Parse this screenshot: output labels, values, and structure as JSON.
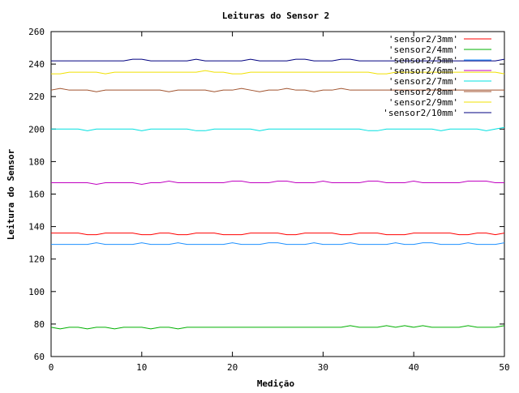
{
  "chart_data": {
    "type": "line",
    "title": "Leituras do Sensor 2",
    "xlabel": "Medição",
    "ylabel": "Leitura do Sensor",
    "xlim": [
      0,
      50
    ],
    "ylim": [
      60,
      260
    ],
    "xticks": [
      0,
      10,
      20,
      30,
      40,
      50
    ],
    "yticks": [
      60,
      80,
      100,
      120,
      140,
      160,
      180,
      200,
      220,
      240,
      260
    ],
    "grid": false,
    "legend_position": "top-right",
    "x": [
      0,
      1,
      2,
      3,
      4,
      5,
      6,
      7,
      8,
      9,
      10,
      11,
      12,
      13,
      14,
      15,
      16,
      17,
      18,
      19,
      20,
      21,
      22,
      23,
      24,
      25,
      26,
      27,
      28,
      29,
      30,
      31,
      32,
      33,
      34,
      35,
      36,
      37,
      38,
      39,
      40,
      41,
      42,
      43,
      44,
      45,
      46,
      47,
      48,
      49,
      50
    ],
    "series": [
      {
        "name": "'sensor2/3mm'",
        "color": "#ff0000",
        "values": [
          136,
          136,
          136,
          136,
          135,
          135,
          136,
          136,
          136,
          136,
          135,
          135,
          136,
          136,
          135,
          135,
          136,
          136,
          136,
          135,
          135,
          135,
          136,
          136,
          136,
          136,
          135,
          135,
          136,
          136,
          136,
          136,
          135,
          135,
          136,
          136,
          136,
          135,
          135,
          135,
          136,
          136,
          136,
          136,
          136,
          135,
          135,
          136,
          136,
          135,
          136
        ]
      },
      {
        "name": "'sensor2/4mm'",
        "color": "#00b000",
        "values": [
          78,
          77,
          78,
          78,
          77,
          78,
          78,
          77,
          78,
          78,
          78,
          77,
          78,
          78,
          77,
          78,
          78,
          78,
          78,
          78,
          78,
          78,
          78,
          78,
          78,
          78,
          78,
          78,
          78,
          78,
          78,
          78,
          78,
          79,
          78,
          78,
          78,
          79,
          78,
          79,
          78,
          79,
          78,
          78,
          78,
          78,
          79,
          78,
          78,
          78,
          79
        ]
      },
      {
        "name": "'sensor2/5mm'",
        "color": "#1e90ff",
        "values": [
          129,
          129,
          129,
          129,
          129,
          130,
          129,
          129,
          129,
          129,
          130,
          129,
          129,
          129,
          130,
          129,
          129,
          129,
          129,
          129,
          130,
          129,
          129,
          129,
          130,
          130,
          129,
          129,
          129,
          130,
          129,
          129,
          129,
          130,
          129,
          129,
          129,
          129,
          130,
          129,
          129,
          130,
          130,
          129,
          129,
          129,
          130,
          129,
          129,
          129,
          130
        ]
      },
      {
        "name": "'sensor2/6mm'",
        "color": "#c000c0",
        "values": [
          167,
          167,
          167,
          167,
          167,
          166,
          167,
          167,
          167,
          167,
          166,
          167,
          167,
          168,
          167,
          167,
          167,
          167,
          167,
          167,
          168,
          168,
          167,
          167,
          167,
          168,
          168,
          167,
          167,
          167,
          168,
          167,
          167,
          167,
          167,
          168,
          168,
          167,
          167,
          167,
          168,
          167,
          167,
          167,
          167,
          167,
          168,
          168,
          168,
          167,
          167
        ]
      },
      {
        "name": "'sensor2/7mm'",
        "color": "#00e0e0",
        "values": [
          200,
          200,
          200,
          200,
          199,
          200,
          200,
          200,
          200,
          200,
          199,
          200,
          200,
          200,
          200,
          200,
          199,
          199,
          200,
          200,
          200,
          200,
          200,
          199,
          200,
          200,
          200,
          200,
          200,
          200,
          200,
          200,
          200,
          200,
          200,
          199,
          199,
          200,
          200,
          200,
          200,
          200,
          200,
          199,
          200,
          200,
          200,
          200,
          199,
          200,
          201
        ]
      },
      {
        "name": "'sensor2/8mm'",
        "color": "#a0522d",
        "values": [
          224,
          225,
          224,
          224,
          224,
          223,
          224,
          224,
          224,
          224,
          224,
          224,
          224,
          223,
          224,
          224,
          224,
          224,
          223,
          224,
          224,
          225,
          224,
          223,
          224,
          224,
          225,
          224,
          224,
          223,
          224,
          224,
          225,
          224,
          224,
          224,
          224,
          224,
          224,
          224,
          224,
          224,
          224,
          224,
          224,
          224,
          224,
          224,
          224,
          224,
          224
        ]
      },
      {
        "name": "'sensor2/9mm'",
        "color": "#f0e000",
        "values": [
          234,
          234,
          235,
          235,
          235,
          235,
          234,
          235,
          235,
          235,
          235,
          235,
          235,
          235,
          235,
          235,
          235,
          236,
          235,
          235,
          234,
          234,
          235,
          235,
          235,
          235,
          235,
          235,
          235,
          235,
          235,
          235,
          235,
          235,
          235,
          235,
          234,
          234,
          235,
          235,
          235,
          235,
          235,
          235,
          235,
          235,
          235,
          235,
          235,
          235,
          234
        ]
      },
      {
        "name": "'sensor2/10mm'",
        "color": "#000080",
        "values": [
          242,
          242,
          242,
          242,
          242,
          242,
          242,
          242,
          242,
          243,
          243,
          242,
          242,
          242,
          242,
          242,
          243,
          242,
          242,
          242,
          242,
          242,
          243,
          242,
          242,
          242,
          242,
          243,
          243,
          242,
          242,
          242,
          243,
          243,
          242,
          242,
          242,
          242,
          242,
          242,
          242,
          242,
          242,
          242,
          242,
          242,
          242,
          242,
          242,
          242,
          243
        ]
      }
    ]
  }
}
